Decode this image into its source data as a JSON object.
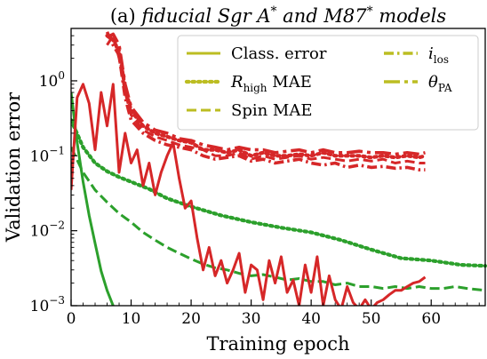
{
  "chart_data": {
    "type": "line",
    "title_prefix": "(a) ",
    "title_italic": "fiducial Sgr A",
    "title_sup1": "*",
    "title_mid": " and M87",
    "title_sup2": "*",
    "title_suffix": " models",
    "xlabel": "Training epoch",
    "ylabel": "Validation error",
    "xlim": [
      0,
      69
    ],
    "ylim": [
      0.001,
      5
    ],
    "yscale": "log",
    "grid": false,
    "legend_position": "top-right",
    "x_ticks": [
      {
        "value": 0,
        "label": "0"
      },
      {
        "value": 10,
        "label": "10"
      },
      {
        "value": 20,
        "label": "20"
      },
      {
        "value": 30,
        "label": "30"
      },
      {
        "value": 40,
        "label": "40"
      },
      {
        "value": 50,
        "label": "50"
      },
      {
        "value": 60,
        "label": "60"
      }
    ],
    "y_ticks": [
      {
        "value": 1,
        "base": "10",
        "exp": "0"
      },
      {
        "value": 0.1,
        "base": "10",
        "exp": "−1"
      },
      {
        "value": 0.01,
        "base": "10",
        "exp": "−2"
      },
      {
        "value": 0.001,
        "base": "10",
        "exp": "−3"
      }
    ],
    "legend": [
      {
        "label": "Class. error",
        "sub": "",
        "style": "solid"
      },
      {
        "label": "R",
        "sub": "high",
        "label_after": " MAE",
        "style": "dotted"
      },
      {
        "label": "Spin MAE",
        "sub": "",
        "style": "dashed"
      },
      {
        "label": "i",
        "sub": "los",
        "style": "dashdot"
      },
      {
        "label": "θ",
        "sub": "PA",
        "style": "longdashdot"
      }
    ],
    "legend_color": "#bcbd22",
    "series": [
      {
        "group": "green",
        "style": "solid",
        "color": "#2ca02c",
        "x": [
          0,
          1,
          2,
          3,
          4,
          5,
          6,
          7
        ],
        "y": [
          0.7,
          0.15,
          0.045,
          0.016,
          0.0068,
          0.0029,
          0.0016,
          0.001
        ]
      },
      {
        "group": "green",
        "style": "dotted",
        "color": "#2ca02c",
        "x": [
          0,
          2,
          4,
          6,
          8,
          10,
          13,
          16,
          20,
          25,
          30,
          35,
          40,
          45,
          50,
          55,
          60,
          65,
          69
        ],
        "y": [
          0.3,
          0.13,
          0.08,
          0.062,
          0.052,
          0.045,
          0.036,
          0.027,
          0.021,
          0.016,
          0.013,
          0.011,
          0.0095,
          0.0075,
          0.0056,
          0.0043,
          0.004,
          0.0035,
          0.0034
        ]
      },
      {
        "group": "green",
        "style": "dashed",
        "color": "#2ca02c",
        "x": [
          0,
          2,
          4,
          6,
          8,
          10,
          12,
          14,
          16,
          18,
          20,
          22,
          24,
          26,
          28,
          30,
          32,
          34,
          36,
          38,
          40,
          42,
          44,
          46,
          48,
          50,
          52,
          54,
          56,
          58,
          60,
          62,
          64,
          66,
          69
        ],
        "y": [
          0.13,
          0.06,
          0.035,
          0.024,
          0.017,
          0.013,
          0.0095,
          0.0075,
          0.006,
          0.005,
          0.0042,
          0.0036,
          0.0032,
          0.003,
          0.0027,
          0.0025,
          0.0026,
          0.0024,
          0.0022,
          0.0023,
          0.0021,
          0.0021,
          0.0019,
          0.002,
          0.0018,
          0.0018,
          0.0017,
          0.0018,
          0.0017,
          0.0018,
          0.0017,
          0.0017,
          0.0018,
          0.0017,
          0.0016
        ]
      },
      {
        "group": "red",
        "style": "solid",
        "color": "#d62728",
        "x": [
          0,
          1,
          2,
          3,
          4,
          5,
          6,
          7,
          8,
          9,
          10,
          11,
          12,
          13,
          14,
          15,
          16,
          17,
          18,
          19,
          20,
          21,
          22,
          23,
          24,
          25,
          26,
          27,
          28,
          29,
          30,
          31,
          32,
          33,
          34,
          35,
          36,
          37,
          38,
          39,
          40,
          41,
          42,
          43,
          44,
          45,
          46,
          47,
          48,
          49,
          50,
          51,
          52,
          53,
          54,
          55,
          56,
          57,
          58,
          59
        ],
        "y": [
          0.035,
          0.6,
          0.9,
          0.5,
          0.12,
          0.7,
          0.25,
          0.9,
          0.06,
          0.2,
          0.08,
          0.12,
          0.04,
          0.08,
          0.03,
          0.06,
          0.1,
          0.15,
          0.05,
          0.02,
          0.025,
          0.008,
          0.003,
          0.006,
          0.0025,
          0.004,
          0.002,
          0.003,
          0.005,
          0.0015,
          0.0035,
          0.003,
          0.0012,
          0.004,
          0.002,
          0.0045,
          0.0015,
          0.0022,
          0.001,
          0.0035,
          0.0015,
          0.0045,
          0.001,
          0.0025,
          0.0012,
          0.0009,
          0.0018,
          0.0011,
          0.0009,
          0.0012,
          0.0009,
          0.0011,
          0.0012,
          0.0014,
          0.0016,
          0.0016,
          0.0018,
          0.002,
          0.0021,
          0.0024
        ]
      },
      {
        "group": "red",
        "style": "dotted",
        "color": "#d62728",
        "x": [
          6,
          7,
          8,
          9,
          10,
          12,
          14,
          16,
          18,
          20,
          22,
          24,
          26,
          28,
          30,
          32,
          34,
          36,
          38,
          40,
          42,
          44,
          46,
          48,
          50,
          52,
          54,
          56,
          58,
          59
        ],
        "y": [
          4,
          3.5,
          2.5,
          0.8,
          0.4,
          0.25,
          0.2,
          0.18,
          0.16,
          0.15,
          0.12,
          0.12,
          0.11,
          0.12,
          0.1,
          0.11,
          0.1,
          0.1,
          0.105,
          0.1,
          0.11,
          0.1,
          0.1,
          0.1,
          0.095,
          0.1,
          0.095,
          0.1,
          0.095,
          0.1
        ]
      },
      {
        "group": "red",
        "style": "dashed",
        "color": "#d62728",
        "x": [
          6,
          7,
          8,
          9,
          10,
          12,
          14,
          16,
          18,
          20,
          22,
          24,
          26,
          28,
          30,
          32,
          34,
          36,
          38,
          40,
          42,
          44,
          46,
          48,
          50,
          52,
          54,
          56,
          58,
          59
        ],
        "y": [
          3,
          4,
          2,
          0.7,
          0.35,
          0.22,
          0.18,
          0.16,
          0.14,
          0.13,
          0.12,
          0.1,
          0.1,
          0.11,
          0.09,
          0.1,
          0.09,
          0.095,
          0.1,
          0.09,
          0.095,
          0.09,
          0.085,
          0.09,
          0.085,
          0.09,
          0.08,
          0.085,
          0.08,
          0.08
        ]
      },
      {
        "group": "red",
        "style": "dashdot",
        "color": "#d62728",
        "x": [
          6,
          7,
          8,
          9,
          10,
          12,
          14,
          16,
          18,
          20,
          22,
          24,
          26,
          28,
          30,
          32,
          34,
          36,
          38,
          40,
          42,
          44,
          46,
          48,
          50,
          52,
          54,
          56,
          58,
          59
        ],
        "y": [
          4.5,
          3,
          2.2,
          0.6,
          0.3,
          0.2,
          0.16,
          0.14,
          0.13,
          0.12,
          0.1,
          0.09,
          0.095,
          0.1,
          0.085,
          0.09,
          0.08,
          0.085,
          0.09,
          0.08,
          0.075,
          0.08,
          0.07,
          0.075,
          0.07,
          0.072,
          0.068,
          0.07,
          0.065,
          0.065
        ]
      },
      {
        "group": "red",
        "style": "longdashdot",
        "color": "#d62728",
        "x": [
          6,
          7,
          8,
          9,
          10,
          12,
          14,
          16,
          18,
          20,
          22,
          24,
          26,
          28,
          30,
          32,
          34,
          36,
          38,
          40,
          42,
          44,
          46,
          48,
          50,
          52,
          54,
          56,
          58,
          59
        ],
        "y": [
          3.8,
          4.2,
          3,
          0.9,
          0.45,
          0.28,
          0.22,
          0.2,
          0.17,
          0.16,
          0.14,
          0.13,
          0.12,
          0.13,
          0.12,
          0.12,
          0.11,
          0.115,
          0.12,
          0.11,
          0.12,
          0.11,
          0.11,
          0.115,
          0.11,
          0.11,
          0.105,
          0.11,
          0.105,
          0.11
        ]
      }
    ]
  }
}
